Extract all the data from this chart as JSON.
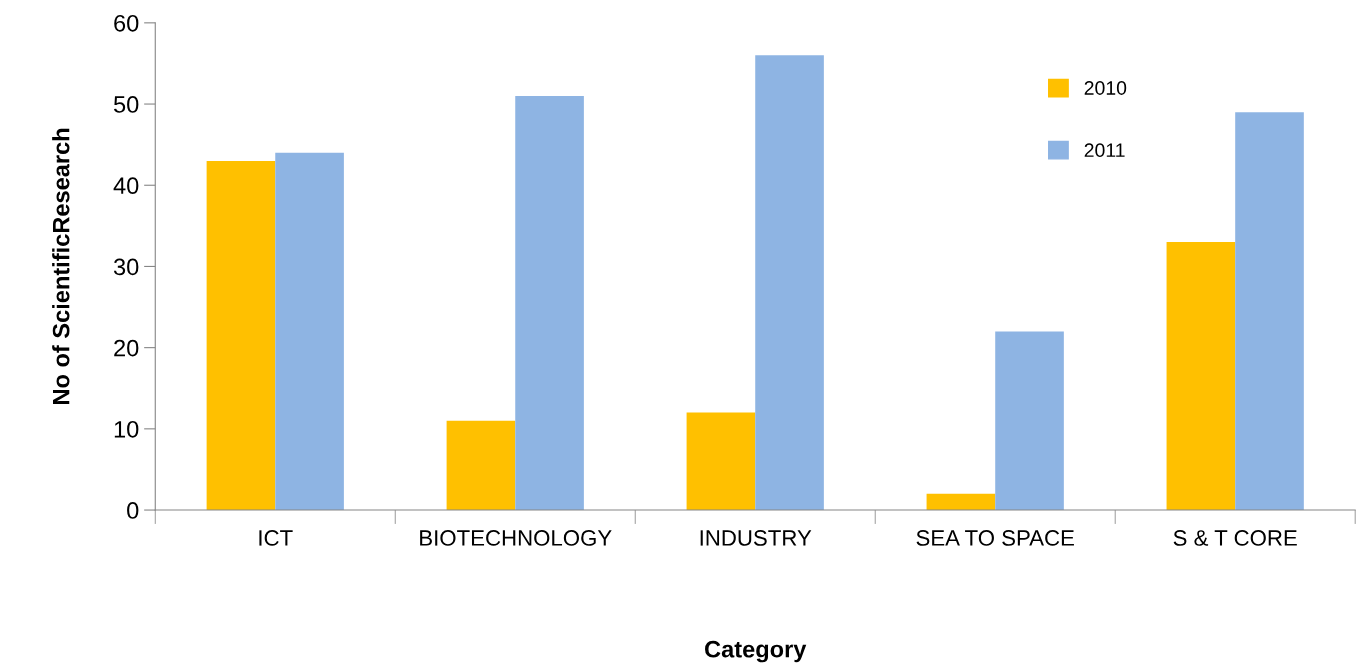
{
  "chart_data": {
    "type": "bar",
    "xlabel": "Category",
    "ylabel": "No of ScientificResearch",
    "categories": [
      "ICT",
      "BIOTECHNOLOGY",
      "INDUSTRY",
      "SEA TO SPACE",
      "S & T CORE"
    ],
    "series": [
      {
        "name": "2010",
        "color": "#ffc000",
        "values": [
          43,
          11,
          12,
          2,
          33
        ]
      },
      {
        "name": "2011",
        "color": "#8eb4e3",
        "values": [
          44,
          51,
          56,
          22,
          49
        ]
      }
    ],
    "ylim": [
      0,
      60
    ],
    "yticks": [
      0,
      10,
      20,
      30,
      40,
      50,
      60
    ],
    "grid": false,
    "legend": "top right"
  }
}
